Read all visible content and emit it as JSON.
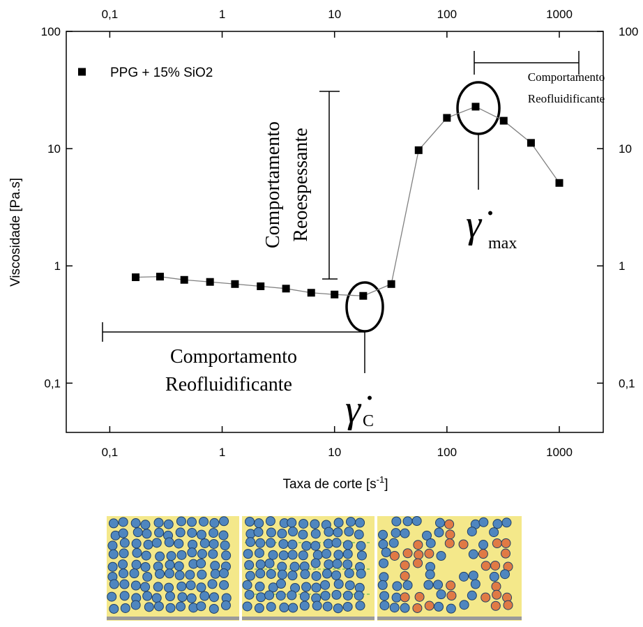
{
  "chart_data": {
    "type": "line",
    "x_label": [
      "Taxa de corte [s",
      "-1",
      "]"
    ],
    "y_label": "Viscosidade [Pa.s]",
    "x": [
      0.17,
      0.28,
      0.46,
      0.78,
      1.3,
      2.2,
      3.7,
      6.2,
      10,
      18,
      32,
      56,
      100,
      180,
      320,
      560,
      1000
    ],
    "series": [
      {
        "name": "PPG + 15% SiO2",
        "color": "#000000",
        "line_color": "#808080",
        "values": [
          0.8,
          0.81,
          0.76,
          0.73,
          0.7,
          0.67,
          0.64,
          0.59,
          0.57,
          0.555,
          0.7,
          9.7,
          18.3,
          22.8,
          17.3,
          11.2,
          5.1
        ]
      }
    ],
    "log_x": true,
    "log_y": true,
    "xlim": [
      0.041,
      2460
    ],
    "ylim": [
      0.038,
      100
    ],
    "xticks": [
      {
        "value": 0.1,
        "label": "0,1"
      },
      1,
      10,
      100,
      1000
    ],
    "yticks": [
      {
        "value": 0.1,
        "label": "0,1"
      },
      1,
      10,
      100
    ],
    "legend": "upper left",
    "annotations": [
      {
        "lines": [
          "Comportamento",
          "Reofluidificante"
        ]
      },
      {
        "lines": [
          "Comportamento",
          "Reoespessante"
        ]
      },
      {
        "lines": [
          "Comportamento",
          "Reofluidificante"
        ]
      },
      {
        "symbol": "γ̇",
        "subscript": "max"
      },
      {
        "symbol": "γ̇",
        "subscript": "C"
      }
    ]
  }
}
